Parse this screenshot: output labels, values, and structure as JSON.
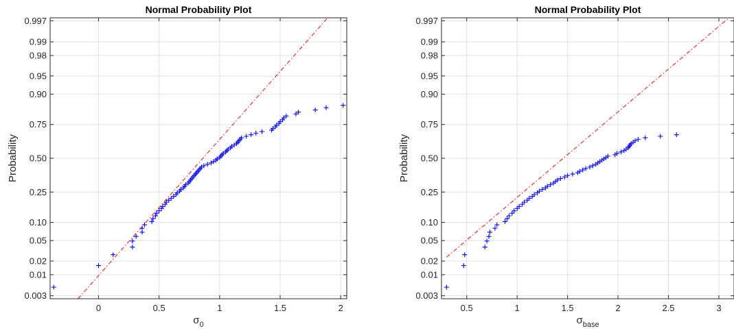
{
  "chart_data": [
    {
      "type": "scatter",
      "title": "Normal Probability Plot",
      "xlabel": "σ",
      "xlabel_sub": "0",
      "ylabel": "Probability",
      "xlim": [
        -0.4,
        2.05
      ],
      "xticks": [
        0,
        0.5,
        1,
        1.5,
        2
      ],
      "xticklabels": [
        "0",
        "0.5",
        "1",
        "1.5",
        "2"
      ],
      "yticks": [
        0.003,
        0.01,
        0.02,
        0.05,
        0.1,
        0.25,
        0.5,
        0.75,
        0.9,
        0.95,
        0.98,
        0.99,
        0.997
      ],
      "yticklabels": [
        "0.003",
        "0.01",
        "0.02",
        "0.05",
        "0.10",
        "0.25",
        "0.50",
        "0.75",
        "0.90",
        "0.95",
        "0.98",
        "0.99",
        "0.997"
      ],
      "grid": true,
      "marker_color": "#0000ff",
      "line_color": "#ff0000",
      "reference_line": {
        "x1": -0.17,
        "p1": 0.0025,
        "x2": 1.96,
        "p2": 0.9986
      },
      "x": [
        -0.37,
        0.0,
        0.12,
        0.28,
        0.28,
        0.31,
        0.36,
        0.36,
        0.38,
        0.44,
        0.45,
        0.47,
        0.48,
        0.5,
        0.52,
        0.53,
        0.55,
        0.56,
        0.58,
        0.6,
        0.62,
        0.64,
        0.65,
        0.67,
        0.68,
        0.7,
        0.71,
        0.72,
        0.74,
        0.75,
        0.76,
        0.77,
        0.78,
        0.79,
        0.8,
        0.81,
        0.82,
        0.83,
        0.84,
        0.85,
        0.87,
        0.9,
        0.93,
        0.95,
        0.97,
        0.98,
        1.0,
        1.01,
        1.02,
        1.03,
        1.05,
        1.06,
        1.07,
        1.09,
        1.1,
        1.12,
        1.14,
        1.15,
        1.16,
        1.17,
        1.18,
        1.22,
        1.26,
        1.3,
        1.35,
        1.43,
        1.44,
        1.46,
        1.47,
        1.49,
        1.5,
        1.52,
        1.53,
        1.55,
        1.63,
        1.65,
        1.79,
        1.88,
        2.02
      ],
      "y": [
        0.005,
        0.016,
        0.027,
        0.038,
        0.049,
        0.059,
        0.07,
        0.081,
        0.092,
        0.103,
        0.114,
        0.125,
        0.136,
        0.147,
        0.158,
        0.168,
        0.179,
        0.19,
        0.201,
        0.212,
        0.223,
        0.234,
        0.245,
        0.256,
        0.267,
        0.277,
        0.288,
        0.299,
        0.31,
        0.321,
        0.332,
        0.343,
        0.354,
        0.365,
        0.376,
        0.386,
        0.397,
        0.408,
        0.419,
        0.43,
        0.441,
        0.452,
        0.463,
        0.474,
        0.485,
        0.495,
        0.506,
        0.517,
        0.528,
        0.539,
        0.55,
        0.561,
        0.572,
        0.583,
        0.594,
        0.604,
        0.615,
        0.626,
        0.637,
        0.648,
        0.659,
        0.67,
        0.681,
        0.692,
        0.703,
        0.713,
        0.724,
        0.735,
        0.746,
        0.757,
        0.768,
        0.779,
        0.79,
        0.801,
        0.812,
        0.822,
        0.833,
        0.844,
        0.855
      ]
    },
    {
      "type": "scatter",
      "title": "Normal Probability Plot",
      "xlabel": "σ",
      "xlabel_sub": "base",
      "ylabel": "Probability",
      "xlim": [
        0.25,
        3.15
      ],
      "xticks": [
        0.5,
        1,
        1.5,
        2,
        2.5,
        3
      ],
      "xticklabels": [
        "0.5",
        "1",
        "1.5",
        "2",
        "2.5",
        "3"
      ],
      "yticks": [
        0.003,
        0.01,
        0.02,
        0.05,
        0.1,
        0.25,
        0.5,
        0.75,
        0.9,
        0.95,
        0.98,
        0.99,
        0.997
      ],
      "yticklabels": [
        "0.003",
        "0.01",
        "0.02",
        "0.05",
        "0.10",
        "0.25",
        "0.50",
        "0.75",
        "0.90",
        "0.95",
        "0.98",
        "0.99",
        "0.997"
      ],
      "grid": true,
      "marker_color": "#0000ff",
      "line_color": "#ff0000",
      "reference_line": {
        "x1": 0.3,
        "p1": 0.024,
        "x2": 3.1,
        "p2": 0.9975
      },
      "x": [
        0.3,
        0.47,
        0.48,
        0.68,
        0.7,
        0.72,
        0.73,
        0.78,
        0.8,
        0.88,
        0.9,
        0.92,
        0.95,
        0.97,
        1.0,
        1.02,
        1.05,
        1.07,
        1.1,
        1.12,
        1.15,
        1.17,
        1.2,
        1.22,
        1.25,
        1.28,
        1.3,
        1.33,
        1.36,
        1.38,
        1.4,
        1.43,
        1.47,
        1.5,
        1.55,
        1.6,
        1.62,
        1.65,
        1.68,
        1.72,
        1.75,
        1.78,
        1.8,
        1.82,
        1.84,
        1.86,
        1.88,
        1.9,
        1.97,
        1.99,
        2.03,
        2.06,
        2.08,
        2.1,
        2.11,
        2.12,
        2.13,
        2.15,
        2.17,
        2.2,
        2.27,
        2.42,
        2.58,
        3.15
      ],
      "y": [
        0.005,
        0.016,
        0.027,
        0.038,
        0.049,
        0.059,
        0.07,
        0.081,
        0.092,
        0.103,
        0.114,
        0.125,
        0.136,
        0.147,
        0.158,
        0.168,
        0.179,
        0.19,
        0.201,
        0.212,
        0.223,
        0.234,
        0.245,
        0.256,
        0.267,
        0.277,
        0.288,
        0.299,
        0.31,
        0.321,
        0.332,
        0.343,
        0.354,
        0.365,
        0.376,
        0.386,
        0.397,
        0.408,
        0.419,
        0.43,
        0.441,
        0.452,
        0.463,
        0.474,
        0.485,
        0.495,
        0.506,
        0.517,
        0.528,
        0.539,
        0.55,
        0.561,
        0.572,
        0.583,
        0.594,
        0.604,
        0.615,
        0.626,
        0.637,
        0.648,
        0.659,
        0.67,
        0.681,
        0.692
      ]
    }
  ]
}
